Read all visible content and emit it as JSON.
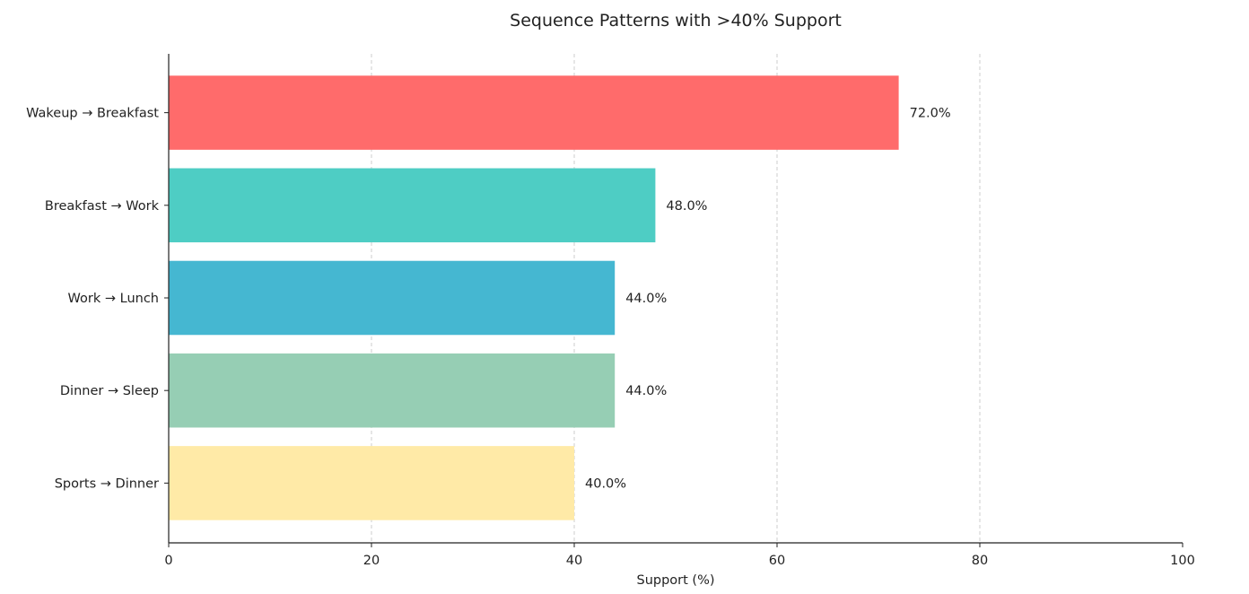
{
  "chart_data": {
    "type": "bar",
    "orientation": "horizontal",
    "title": "Sequence Patterns with >40% Support",
    "xlabel": "Support (%)",
    "ylabel": "",
    "xlim": [
      0,
      100
    ],
    "xticks": [
      0,
      20,
      40,
      60,
      80,
      100
    ],
    "grid": "x-dashed",
    "categories": [
      "Wakeup → Breakfast",
      "Breakfast → Work",
      "Work → Lunch",
      "Dinner → Sleep",
      "Sports → Dinner"
    ],
    "values": [
      72.0,
      48.0,
      44.0,
      44.0,
      40.0
    ],
    "value_labels": [
      "72.0%",
      "48.0%",
      "44.0%",
      "44.0%",
      "40.0%"
    ],
    "colors": [
      "#ff6b6b",
      "#4ecdc4",
      "#45b7d1",
      "#96ceb4",
      "#ffeaa7"
    ]
  }
}
